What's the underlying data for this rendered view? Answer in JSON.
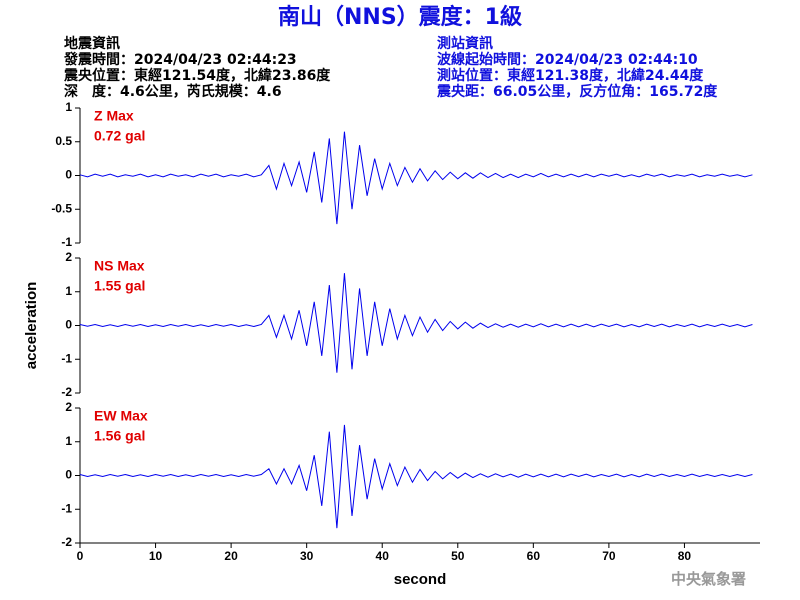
{
  "header": {
    "title": "南山（NNS）震度：1級",
    "left": [
      "地震資訊",
      "發震時間：2024/04/23 02:44:23",
      "震央位置：東經121.54度，北緯23.86度",
      "深　度：4.6公里，芮氏規模：4.6"
    ],
    "right": [
      "測站資訊",
      "波線起始時間：2024/04/23 02:44:10",
      "測站位置：東經121.38度，北緯24.44度",
      "震央距：66.05公里，反方位角：165.72度"
    ]
  },
  "footer": "中央氣象署",
  "chart_data": [
    {
      "type": "line",
      "color": "#0000ee",
      "annotations": [
        "Z Max",
        "0.72 gal"
      ],
      "x": [
        0,
        1,
        2,
        3,
        4,
        5,
        6,
        7,
        8,
        9,
        10,
        11,
        12,
        13,
        14,
        15,
        16,
        17,
        18,
        19,
        20,
        21,
        22,
        23,
        24,
        25,
        26,
        27,
        28,
        29,
        30,
        31,
        32,
        33,
        34,
        35,
        36,
        37,
        38,
        39,
        40,
        41,
        42,
        43,
        44,
        45,
        46,
        47,
        48,
        49,
        50,
        51,
        52,
        53,
        54,
        55,
        56,
        57,
        58,
        59,
        60,
        61,
        62,
        63,
        64,
        65,
        66,
        67,
        68,
        69,
        70,
        71,
        72,
        73,
        74,
        75,
        76,
        77,
        78,
        79,
        80,
        81,
        82,
        83,
        84,
        85,
        86,
        87,
        88,
        89
      ],
      "values": [
        0.01,
        -0.02,
        0.02,
        -0.01,
        0.02,
        -0.02,
        0.01,
        -0.01,
        0.02,
        -0.02,
        0.01,
        -0.02,
        0.02,
        -0.01,
        0.01,
        -0.02,
        0.02,
        -0.01,
        0.02,
        -0.02,
        0.01,
        -0.01,
        0.02,
        -0.02,
        0.01,
        0.15,
        -0.2,
        0.18,
        -0.15,
        0.2,
        -0.25,
        0.35,
        -0.4,
        0.55,
        -0.72,
        0.65,
        -0.5,
        0.45,
        -0.3,
        0.25,
        -0.2,
        0.18,
        -0.15,
        0.12,
        -0.1,
        0.1,
        -0.08,
        0.07,
        -0.06,
        0.05,
        -0.05,
        0.04,
        -0.04,
        0.04,
        -0.03,
        0.03,
        -0.03,
        0.02,
        -0.03,
        0.02,
        -0.02,
        0.03,
        -0.02,
        0.02,
        -0.02,
        0.02,
        -0.02,
        0.02,
        -0.02,
        0.02,
        -0.01,
        0.02,
        -0.02,
        0.01,
        -0.02,
        0.02,
        -0.01,
        0.02,
        -0.02,
        0.01,
        -0.01,
        0.02,
        -0.02,
        0.01,
        -0.01,
        0.02,
        -0.01,
        0.01,
        -0.02,
        0.01
      ],
      "xlim": [
        0,
        90
      ],
      "ylim": [
        -1,
        1
      ],
      "yticks": [
        -1,
        -0.5,
        0,
        0.5,
        1
      ]
    },
    {
      "type": "line",
      "color": "#0000ee",
      "annotations": [
        "NS Max",
        "1.55 gal"
      ],
      "ylabel": "acceleration",
      "x": [
        0,
        1,
        2,
        3,
        4,
        5,
        6,
        7,
        8,
        9,
        10,
        11,
        12,
        13,
        14,
        15,
        16,
        17,
        18,
        19,
        20,
        21,
        22,
        23,
        24,
        25,
        26,
        27,
        28,
        29,
        30,
        31,
        32,
        33,
        34,
        35,
        36,
        37,
        38,
        39,
        40,
        41,
        42,
        43,
        44,
        45,
        46,
        47,
        48,
        49,
        50,
        51,
        52,
        53,
        54,
        55,
        56,
        57,
        58,
        59,
        60,
        61,
        62,
        63,
        64,
        65,
        66,
        67,
        68,
        69,
        70,
        71,
        72,
        73,
        74,
        75,
        76,
        77,
        78,
        79,
        80,
        81,
        82,
        83,
        84,
        85,
        86,
        87,
        88,
        89
      ],
      "values": [
        0.03,
        -0.02,
        0.03,
        -0.03,
        0.02,
        -0.03,
        0.03,
        -0.02,
        0.03,
        -0.03,
        0.02,
        -0.03,
        0.03,
        -0.02,
        0.03,
        -0.03,
        0.02,
        -0.03,
        0.03,
        -0.02,
        0.03,
        -0.03,
        0.02,
        -0.03,
        0.03,
        0.3,
        -0.35,
        0.3,
        -0.4,
        0.45,
        -0.6,
        0.7,
        -0.9,
        1.2,
        -1.4,
        1.55,
        -1.3,
        1.1,
        -0.9,
        0.7,
        -0.6,
        0.5,
        -0.4,
        0.3,
        -0.3,
        0.25,
        -0.2,
        0.18,
        -0.15,
        0.12,
        -0.1,
        0.1,
        -0.08,
        0.07,
        -0.06,
        0.05,
        -0.05,
        0.04,
        -0.05,
        0.04,
        -0.04,
        0.05,
        -0.04,
        0.04,
        -0.04,
        0.04,
        -0.04,
        0.04,
        -0.04,
        0.04,
        -0.03,
        0.04,
        -0.04,
        0.03,
        -0.04,
        0.04,
        -0.03,
        0.04,
        -0.04,
        0.03,
        -0.03,
        0.04,
        -0.04,
        0.03,
        -0.03,
        0.04,
        -0.03,
        0.03,
        -0.04,
        0.03
      ],
      "xlim": [
        0,
        90
      ],
      "ylim": [
        -2,
        2
      ],
      "yticks": [
        -2,
        -1,
        0,
        1,
        2
      ]
    },
    {
      "type": "line",
      "color": "#0000ee",
      "annotations": [
        "EW Max",
        "1.56 gal"
      ],
      "xlabel": "second",
      "x": [
        0,
        1,
        2,
        3,
        4,
        5,
        6,
        7,
        8,
        9,
        10,
        11,
        12,
        13,
        14,
        15,
        16,
        17,
        18,
        19,
        20,
        21,
        22,
        23,
        24,
        25,
        26,
        27,
        28,
        29,
        30,
        31,
        32,
        33,
        34,
        35,
        36,
        37,
        38,
        39,
        40,
        41,
        42,
        43,
        44,
        45,
        46,
        47,
        48,
        49,
        50,
        51,
        52,
        53,
        54,
        55,
        56,
        57,
        58,
        59,
        60,
        61,
        62,
        63,
        64,
        65,
        66,
        67,
        68,
        69,
        70,
        71,
        72,
        73,
        74,
        75,
        76,
        77,
        78,
        79,
        80,
        81,
        82,
        83,
        84,
        85,
        86,
        87,
        88,
        89
      ],
      "values": [
        0.03,
        -0.03,
        0.02,
        -0.03,
        0.03,
        -0.02,
        0.03,
        -0.03,
        0.02,
        -0.03,
        0.03,
        -0.02,
        0.03,
        -0.03,
        0.02,
        -0.03,
        0.03,
        -0.02,
        0.03,
        -0.03,
        0.02,
        -0.03,
        0.03,
        -0.02,
        0.03,
        0.2,
        -0.25,
        0.2,
        -0.25,
        0.3,
        -0.45,
        0.6,
        -0.9,
        1.3,
        -1.56,
        1.5,
        -1.2,
        0.9,
        -0.7,
        0.5,
        -0.4,
        0.35,
        -0.3,
        0.25,
        -0.2,
        0.18,
        -0.15,
        0.12,
        -0.1,
        0.09,
        -0.08,
        0.07,
        -0.06,
        0.05,
        -0.05,
        0.05,
        -0.04,
        0.04,
        -0.05,
        0.04,
        -0.04,
        0.04,
        -0.04,
        0.04,
        -0.04,
        0.04,
        -0.03,
        0.04,
        -0.04,
        0.03,
        -0.03,
        0.04,
        -0.04,
        0.03,
        -0.04,
        0.04,
        -0.03,
        0.04,
        -0.03,
        0.03,
        -0.03,
        0.04,
        -0.03,
        0.03,
        -0.03,
        0.03,
        -0.03,
        0.03,
        -0.03,
        0.03
      ],
      "xlim": [
        0,
        90
      ],
      "ylim": [
        -2,
        2
      ],
      "yticks": [
        -2,
        -1,
        0,
        1,
        2
      ],
      "xticks": [
        0,
        10,
        20,
        30,
        40,
        50,
        60,
        70,
        80
      ]
    }
  ]
}
